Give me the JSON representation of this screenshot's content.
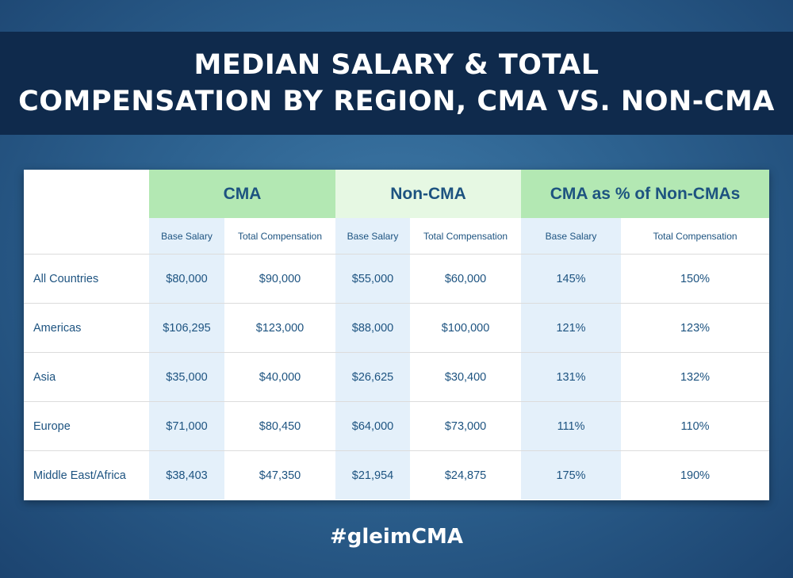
{
  "title": {
    "line1": "MEDIAN SALARY & TOTAL",
    "line2": "COMPENSATION BY REGION, CMA VS. NON-CMA"
  },
  "hashtag": "#gleimCMA",
  "chart_data": {
    "type": "table",
    "title": "MEDIAN SALARY & TOTAL COMPENSATION BY REGION, CMA VS. NON-CMA",
    "groups": [
      "CMA",
      "Non-CMA",
      "CMA as % of Non-CMAs"
    ],
    "subheaders": [
      "Base Salary",
      "Total Compensation",
      "Base Salary",
      "Total Compensation",
      "Base Salary",
      "Total Compensation"
    ],
    "rows": [
      {
        "region": "All Countries",
        "values": [
          "$80,000",
          "$90,000",
          "$55,000",
          "$60,000",
          "145%",
          "150%"
        ]
      },
      {
        "region": "Americas",
        "values": [
          "$106,295",
          "$123,000",
          "$88,000",
          "$100,000",
          "121%",
          "123%"
        ]
      },
      {
        "region": "Asia",
        "values": [
          "$35,000",
          "$40,000",
          "$26,625",
          "$30,400",
          "131%",
          "132%"
        ]
      },
      {
        "region": "Europe",
        "values": [
          "$71,000",
          "$80,450",
          "$64,000",
          "$73,000",
          "111%",
          "110%"
        ]
      },
      {
        "region": "Middle East/Africa",
        "values": [
          "$38,403",
          "$47,350",
          "$21,954",
          "$24,875",
          "175%",
          "190%"
        ]
      }
    ]
  }
}
